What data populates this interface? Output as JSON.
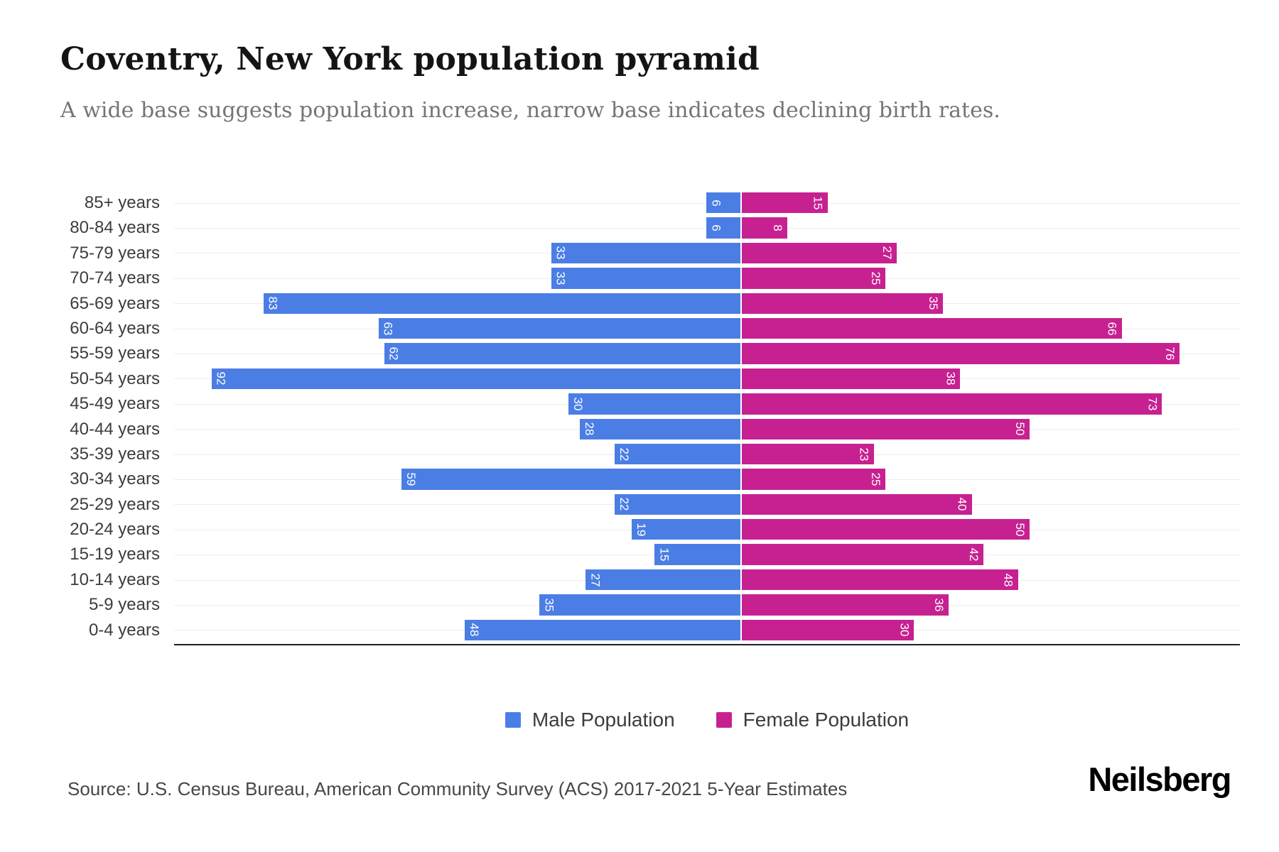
{
  "chart_data": {
    "type": "bar",
    "variant": "population_pyramid",
    "title": "Coventry, New York population pyramid",
    "subtitle": "A wide base suggests population increase, narrow base indicates declining birth rates.",
    "categories": [
      "85+ years",
      "80-84 years",
      "75-79 years",
      "70-74 years",
      "65-69 years",
      "60-64 years",
      "55-59 years",
      "50-54 years",
      "45-49 years",
      "40-44 years",
      "35-39 years",
      "30-34 years",
      "25-29 years",
      "20-24 years",
      "15-19 years",
      "10-14 years",
      "5-9 years",
      "0-4 years"
    ],
    "series": [
      {
        "name": "Male Population",
        "color": "#4b7ee5",
        "values": [
          6,
          6,
          33,
          33,
          83,
          63,
          62,
          92,
          30,
          28,
          22,
          59,
          22,
          19,
          15,
          27,
          35,
          48
        ]
      },
      {
        "name": "Female Population",
        "color": "#c72191",
        "values": [
          15,
          8,
          27,
          25,
          35,
          66,
          76,
          38,
          73,
          50,
          23,
          25,
          40,
          50,
          42,
          48,
          36,
          30
        ]
      }
    ],
    "axis": {
      "male_axis_max": 98.5,
      "female_axis_max": 86.5,
      "x_ticks_visible": false,
      "gridlines": "horizontal line at each category row"
    },
    "bar_value_labels": "white, rotated 90deg, inside outer end of bar",
    "legend_position": "bottom-center"
  },
  "footer": {
    "source": "Source: U.S. Census Bureau, American Community Survey (ACS) 2017-2021 5-Year Estimates",
    "logo": "Neilsberg"
  }
}
